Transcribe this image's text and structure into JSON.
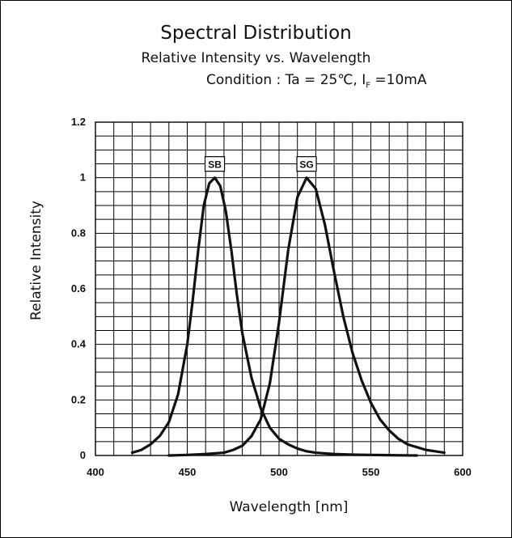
{
  "texts": {
    "title": "Spectral Distribution",
    "subtitle": "Relative Intensity vs. Wavelength",
    "condition_prefix": "Condition : Ta = 25℃, I",
    "condition_sub": "F",
    "condition_suffix": " =10mA"
  },
  "chart_data": {
    "type": "line",
    "xlabel": "Wavelength [nm]",
    "ylabel": "Relative Intensity",
    "xlim": [
      400,
      600
    ],
    "ylim": [
      0,
      1.2
    ],
    "x_ticks": [
      400,
      450,
      500,
      550,
      600
    ],
    "x_tick_labels": [
      "400",
      "450",
      "500",
      "550",
      "600"
    ],
    "y_ticks": [
      0,
      0.2,
      0.4,
      0.6,
      0.8,
      1.0,
      1.2
    ],
    "y_tick_labels": [
      "0",
      "0.2",
      "0.4",
      "0.6",
      "0.8",
      "1",
      "1.2"
    ],
    "grid": true,
    "minor_x_step": 10,
    "minor_y_step": 0.05,
    "series": [
      {
        "name": "SB",
        "color": "#111111",
        "x": [
          420,
          425,
          430,
          435,
          440,
          445,
          450,
          453,
          456,
          459,
          462,
          465,
          468,
          471,
          474,
          477,
          480,
          485,
          490,
          495,
          500,
          505,
          510,
          515,
          520,
          530,
          540,
          550,
          560,
          575
        ],
        "y": [
          0.01,
          0.02,
          0.04,
          0.07,
          0.12,
          0.22,
          0.4,
          0.56,
          0.74,
          0.9,
          0.98,
          1.0,
          0.97,
          0.88,
          0.74,
          0.58,
          0.44,
          0.28,
          0.17,
          0.1,
          0.06,
          0.04,
          0.025,
          0.015,
          0.01,
          0.005,
          0.003,
          0.002,
          0.001,
          0.0
        ]
      },
      {
        "name": "SG",
        "color": "#111111",
        "x": [
          440,
          450,
          460,
          470,
          475,
          480,
          485,
          490,
          495,
          500,
          505,
          510,
          515,
          520,
          525,
          530,
          535,
          540,
          545,
          550,
          555,
          560,
          565,
          570,
          575,
          580,
          585,
          590
        ],
        "y": [
          0.0,
          0.002,
          0.005,
          0.01,
          0.02,
          0.035,
          0.07,
          0.13,
          0.26,
          0.48,
          0.74,
          0.93,
          1.0,
          0.96,
          0.83,
          0.66,
          0.5,
          0.37,
          0.27,
          0.19,
          0.13,
          0.09,
          0.06,
          0.04,
          0.03,
          0.02,
          0.015,
          0.01
        ]
      }
    ]
  }
}
